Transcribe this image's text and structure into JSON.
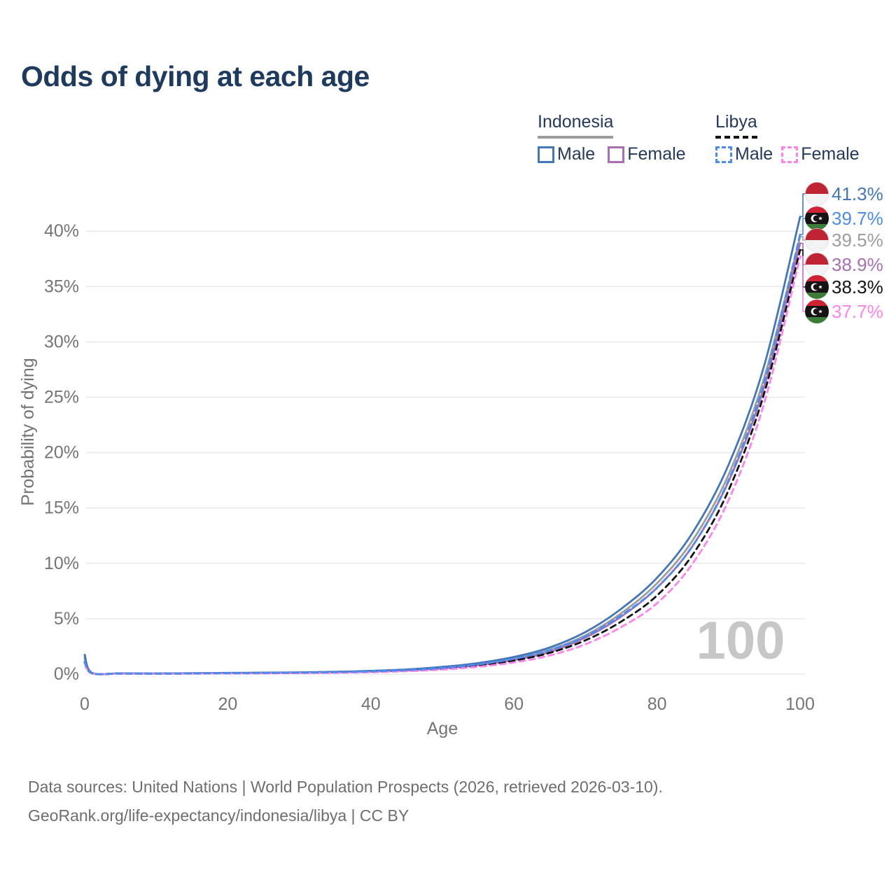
{
  "page": {
    "title": "Odds of dying at each age",
    "watermark_age": "100",
    "footer_line1": "Data sources: United Nations | World Population Prospects (2026, retrieved 2026-03-10).",
    "footer_line2": "GeoRank.org/life-expectancy/indonesia/libya | CC BY"
  },
  "legend": {
    "indonesia": {
      "label": "Indonesia",
      "male_label": "Male",
      "female_label": "Female"
    },
    "libya": {
      "label": "Libya",
      "male_label": "Male",
      "female_label": "Female"
    }
  },
  "colors": {
    "title_text": "#1e3a5f",
    "legend_text": "#24395c",
    "axis_text": "#757575",
    "gridline": "#e9e9e9",
    "watermark": "#c7c7c7",
    "footer_text": "#6e6e6e",
    "indonesia_underline": "#9d9d9d",
    "libya_underline": "#141414",
    "indonesia_flag_red": "#bf2435",
    "indonesia_flag_white": "#f3f3f5",
    "libya_flag_red": "#cf2233",
    "libya_flag_black": "#171214",
    "libya_flag_green": "#3e7c39"
  },
  "chart_data": {
    "type": "line",
    "title": "Odds of dying at each age",
    "xlabel": "Age",
    "ylabel": "Probability of dying",
    "xlim": [
      0,
      100
    ],
    "ylim": [
      0,
      43
    ],
    "grid": true,
    "legend_position": "top-right",
    "xticks": [
      "0",
      "20",
      "40",
      "60",
      "80",
      "100"
    ],
    "xtick_values": [
      0,
      20,
      40,
      60,
      80,
      100
    ],
    "ytick_labels": [
      "0%",
      "5%",
      "10%",
      "15%",
      "20%",
      "25%",
      "30%",
      "35%",
      "40%"
    ],
    "ytick_values": [
      0,
      5,
      10,
      15,
      20,
      25,
      30,
      35,
      40
    ],
    "x": [
      0,
      1,
      5,
      10,
      15,
      20,
      25,
      30,
      35,
      40,
      45,
      50,
      55,
      60,
      65,
      70,
      75,
      80,
      85,
      90,
      95,
      100
    ],
    "series": [
      {
        "name": "Indonesia Male",
        "country": "indonesia",
        "sex": "male",
        "color": "#4376ba",
        "dash": false,
        "end_label": "41.3%",
        "end_value": 41.3,
        "values": [
          1.75,
          0.12,
          0.07,
          0.06,
          0.08,
          0.11,
          0.13,
          0.16,
          0.21,
          0.29,
          0.42,
          0.65,
          1.0,
          1.55,
          2.4,
          3.8,
          5.9,
          8.7,
          12.8,
          18.9,
          27.9,
          41.3
        ]
      },
      {
        "name": "Libya Male",
        "country": "libya",
        "sex": "male",
        "color": "#4c8bf0",
        "dash": true,
        "end_label": "39.7%",
        "end_value": 39.7,
        "values": [
          1.15,
          0.09,
          0.05,
          0.045,
          0.06,
          0.08,
          0.1,
          0.13,
          0.17,
          0.24,
          0.36,
          0.55,
          0.88,
          1.38,
          2.15,
          3.4,
          5.3,
          7.8,
          11.6,
          17.5,
          26.4,
          39.7
        ]
      },
      {
        "name": "Indonesia Both sexes",
        "country": "indonesia",
        "sex": "both",
        "color": "#9d9d9d",
        "dash": false,
        "end_label": "39.5%",
        "end_value": 39.5,
        "values": [
          1.6,
          0.11,
          0.065,
          0.055,
          0.07,
          0.09,
          0.11,
          0.14,
          0.18,
          0.26,
          0.38,
          0.58,
          0.9,
          1.4,
          2.2,
          3.5,
          5.5,
          8.2,
          12.1,
          18.0,
          26.8,
          39.5
        ]
      },
      {
        "name": "Indonesia Female",
        "country": "indonesia",
        "sex": "female",
        "color": "#a96fb4",
        "dash": false,
        "end_label": "38.9%",
        "end_value": 38.9,
        "values": [
          1.45,
          0.1,
          0.06,
          0.05,
          0.06,
          0.08,
          0.095,
          0.12,
          0.16,
          0.23,
          0.34,
          0.52,
          0.82,
          1.28,
          2.0,
          3.3,
          5.2,
          7.8,
          11.6,
          17.4,
          26.0,
          38.9
        ]
      },
      {
        "name": "Libya Both sexes",
        "country": "libya",
        "sex": "both",
        "color": "#141414",
        "dash": true,
        "end_label": "38.3%",
        "end_value": 38.3,
        "values": [
          1.05,
          0.08,
          0.045,
          0.04,
          0.05,
          0.07,
          0.085,
          0.11,
          0.15,
          0.21,
          0.31,
          0.48,
          0.77,
          1.22,
          1.92,
          3.05,
          4.75,
          7.1,
          10.8,
          16.6,
          25.4,
          38.3
        ]
      },
      {
        "name": "Libya Female",
        "country": "libya",
        "sex": "female",
        "color": "#fc84ec",
        "dash": true,
        "end_label": "37.7%",
        "end_value": 37.7,
        "values": [
          0.95,
          0.075,
          0.04,
          0.038,
          0.045,
          0.06,
          0.07,
          0.09,
          0.12,
          0.17,
          0.26,
          0.41,
          0.66,
          1.05,
          1.68,
          2.7,
          4.25,
          6.4,
          10.0,
          15.7,
          24.5,
          37.7
        ]
      }
    ],
    "end_label_order": [
      "41.3%",
      "39.7%",
      "39.5%",
      "38.9%",
      "38.3%",
      "37.7%"
    ]
  }
}
